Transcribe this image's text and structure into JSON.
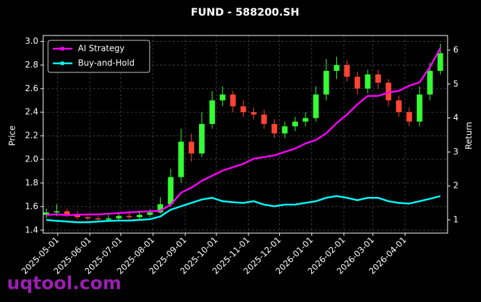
{
  "chart_data": {
    "type": "candlestick",
    "title": "FUND - 588200.SH",
    "ylabel": "Price",
    "y2label": "Return",
    "watermark": "uqtool.com",
    "x": [
      "2025-04-20",
      "2025-04-30",
      "2025-05-10",
      "2025-05-20",
      "2025-05-30",
      "2025-06-09",
      "2025-06-19",
      "2025-06-29",
      "2025-07-09",
      "2025-07-19",
      "2025-07-29",
      "2025-08-08",
      "2025-08-18",
      "2025-08-28",
      "2025-09-07",
      "2025-09-17",
      "2025-09-27",
      "2025-10-07",
      "2025-10-17",
      "2025-10-27",
      "2025-11-06",
      "2025-11-16",
      "2025-11-26",
      "2025-12-06",
      "2025-12-16",
      "2025-12-26",
      "2026-01-05",
      "2026-01-15",
      "2026-01-25",
      "2026-02-04",
      "2026-02-14",
      "2026-02-24",
      "2026-03-06",
      "2026-03-16",
      "2026-03-26",
      "2026-04-05",
      "2026-04-15",
      "2026-04-25",
      "2026-05-05"
    ],
    "open": [
      1.53,
      1.55,
      1.56,
      1.53,
      1.51,
      1.5,
      1.49,
      1.5,
      1.52,
      1.51,
      1.53,
      1.55,
      1.62,
      1.85,
      2.15,
      2.05,
      2.3,
      2.5,
      2.55,
      2.45,
      2.4,
      2.38,
      2.3,
      2.22,
      2.28,
      2.32,
      2.35,
      2.55,
      2.75,
      2.8,
      2.7,
      2.6,
      2.72,
      2.65,
      2.5,
      2.4,
      2.32,
      2.55,
      2.75
    ],
    "high": [
      1.58,
      1.62,
      1.58,
      1.56,
      1.53,
      1.52,
      1.53,
      1.54,
      1.55,
      1.55,
      1.58,
      1.68,
      1.92,
      2.26,
      2.22,
      2.4,
      2.58,
      2.62,
      2.58,
      2.5,
      2.44,
      2.42,
      2.34,
      2.32,
      2.36,
      2.4,
      2.62,
      2.85,
      2.87,
      2.84,
      2.74,
      2.76,
      2.76,
      2.68,
      2.54,
      2.44,
      2.62,
      2.82,
      2.98
    ],
    "low": [
      1.5,
      1.52,
      1.51,
      1.49,
      1.48,
      1.47,
      1.47,
      1.48,
      1.49,
      1.49,
      1.51,
      1.54,
      1.6,
      1.8,
      1.98,
      2.02,
      2.26,
      2.45,
      2.4,
      2.36,
      2.34,
      2.26,
      2.18,
      2.18,
      2.24,
      2.28,
      2.32,
      2.5,
      2.68,
      2.66,
      2.55,
      2.56,
      2.6,
      2.45,
      2.36,
      2.28,
      2.28,
      2.5,
      2.72
    ],
    "close": [
      1.55,
      1.56,
      1.53,
      1.51,
      1.5,
      1.49,
      1.5,
      1.52,
      1.51,
      1.53,
      1.55,
      1.62,
      1.85,
      2.15,
      2.05,
      2.3,
      2.5,
      2.55,
      2.45,
      2.4,
      2.38,
      2.3,
      2.22,
      2.28,
      2.32,
      2.35,
      2.55,
      2.75,
      2.8,
      2.7,
      2.6,
      2.72,
      2.65,
      2.5,
      2.4,
      2.32,
      2.55,
      2.75,
      2.9
    ],
    "up_color": "#33ff33",
    "down_color": "#ff4433",
    "series": [
      {
        "name": "AI Strategy",
        "color": "#ff00ff",
        "axis": "y2",
        "values": [
          1.15,
          1.16,
          1.14,
          1.15,
          1.16,
          1.16,
          1.18,
          1.2,
          1.22,
          1.24,
          1.25,
          1.27,
          1.45,
          1.8,
          1.95,
          2.15,
          2.3,
          2.45,
          2.55,
          2.65,
          2.8,
          2.85,
          2.9,
          3.0,
          3.1,
          3.25,
          3.35,
          3.55,
          3.85,
          4.1,
          4.4,
          4.65,
          4.65,
          4.75,
          4.8,
          4.95,
          5.05,
          5.5,
          6.05
        ]
      },
      {
        "name": "Buy-and-Hold",
        "color": "#00ffff",
        "axis": "y2",
        "values": [
          1.0,
          0.97,
          0.95,
          0.93,
          0.93,
          0.95,
          0.97,
          0.98,
          0.98,
          1.0,
          1.02,
          1.1,
          1.3,
          1.4,
          1.5,
          1.6,
          1.65,
          1.55,
          1.52,
          1.5,
          1.55,
          1.45,
          1.4,
          1.45,
          1.45,
          1.5,
          1.55,
          1.65,
          1.7,
          1.65,
          1.58,
          1.65,
          1.65,
          1.55,
          1.5,
          1.48,
          1.55,
          1.62,
          1.7
        ]
      }
    ],
    "xlim": [
      "2025-04-17",
      "2026-05-12"
    ],
    "xticks": [
      "2025-05-01",
      "2025-06-01",
      "2025-07-01",
      "2025-08-01",
      "2025-09-01",
      "2025-10-01",
      "2025-11-01",
      "2025-12-01",
      "2026-01-01",
      "2026-02-01",
      "2026-03-01",
      "2026-04-01"
    ],
    "ylim": [
      1.375,
      3.05
    ],
    "yticks": [
      1.4,
      1.6,
      1.8,
      {
        "value": 2,
        "label": "2.0"
      },
      2.2,
      2.4,
      2.6,
      2.8,
      {
        "value": 3,
        "label": "3.0"
      }
    ],
    "y2lim": [
      0.61,
      6.43
    ],
    "y2ticks": [
      1,
      2,
      3,
      4,
      5,
      6
    ],
    "grid": true,
    "legend": "upper-left"
  }
}
